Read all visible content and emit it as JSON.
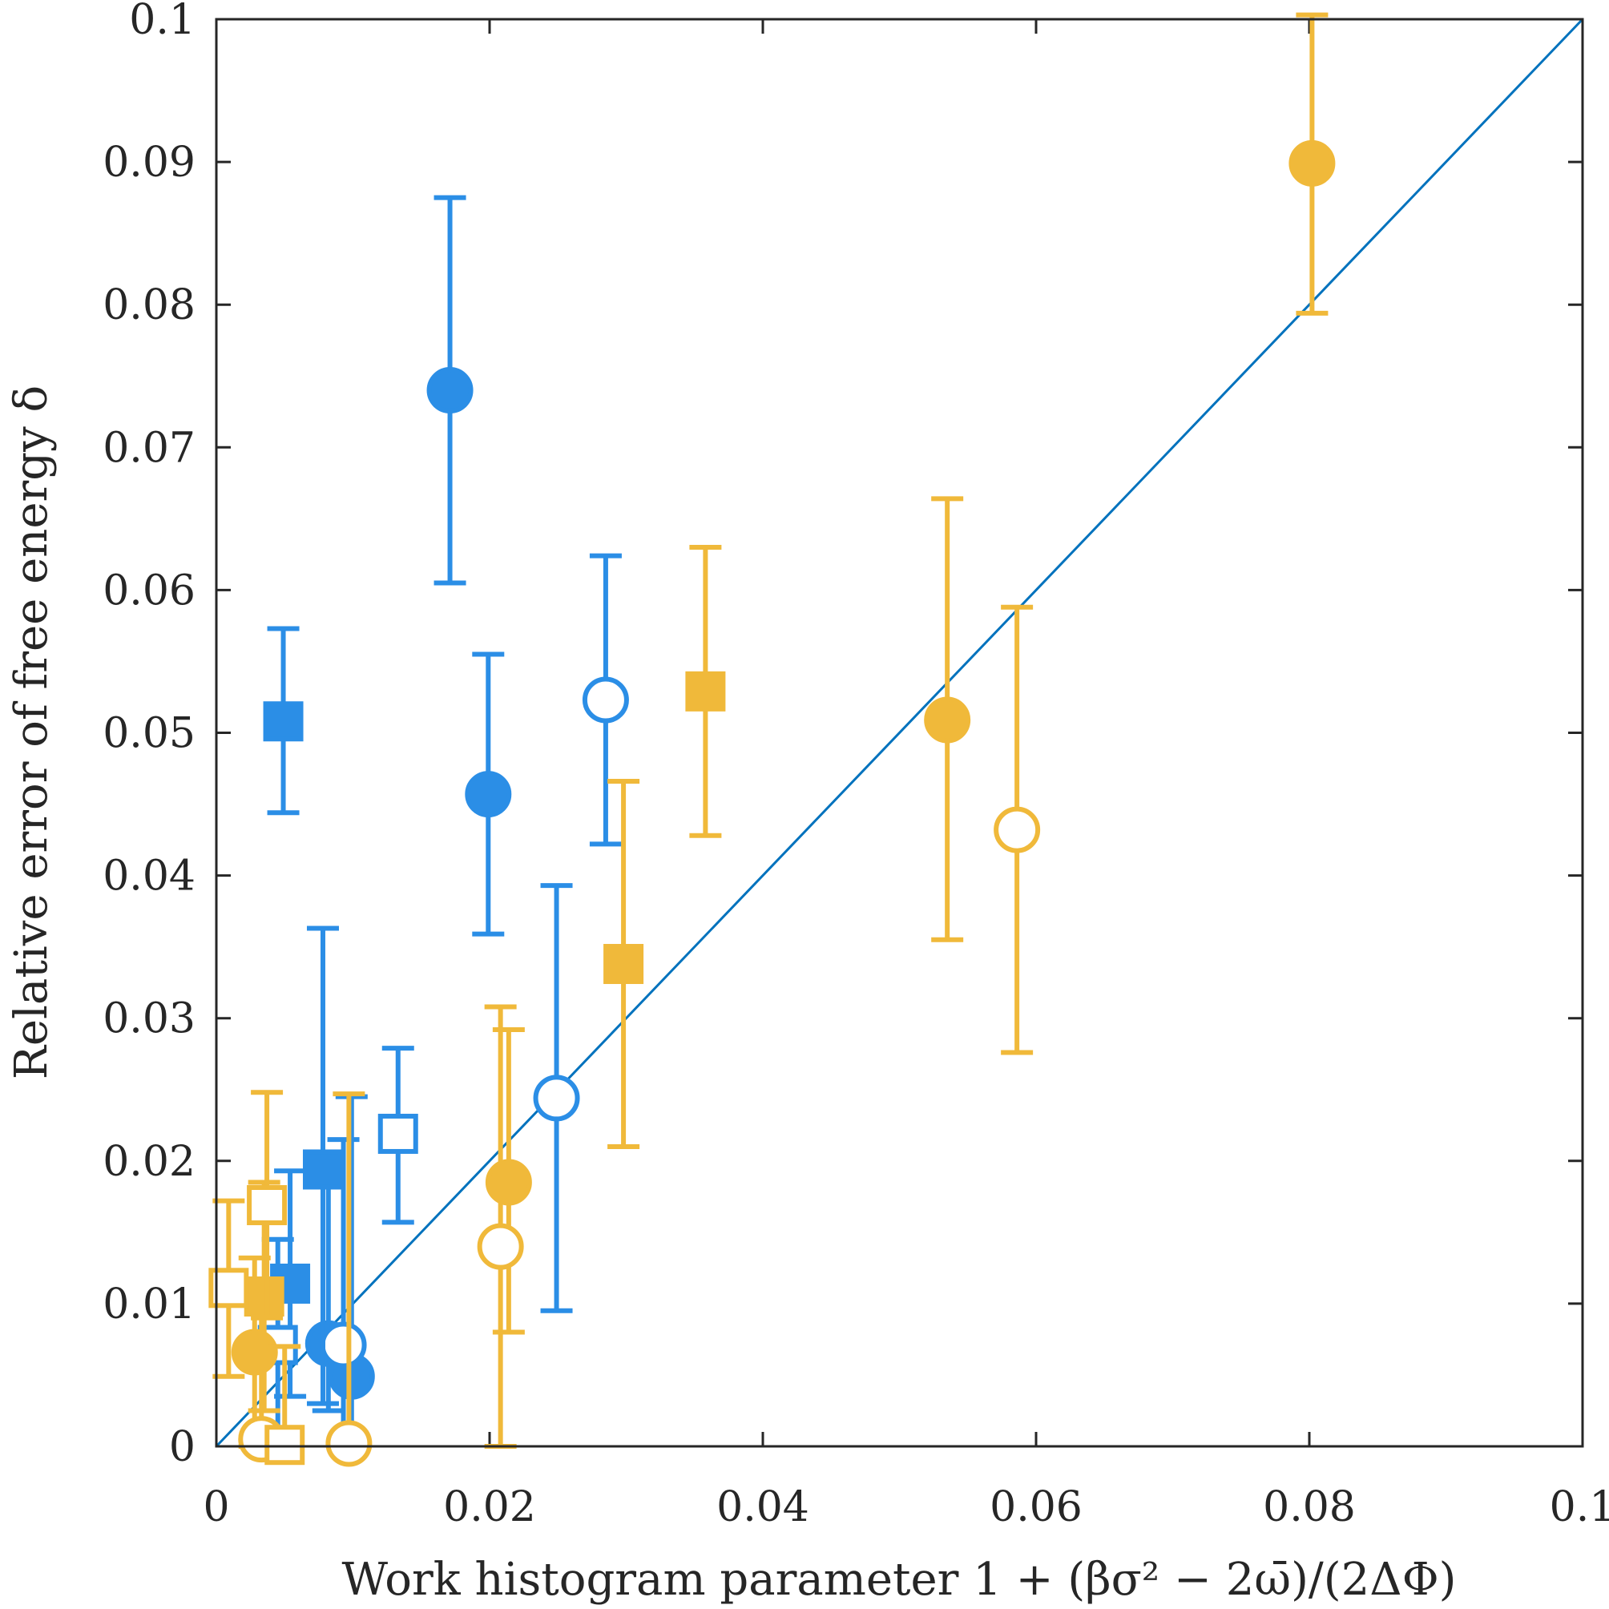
{
  "chart_data": {
    "type": "scatter",
    "title": "",
    "xlabel": "Work histogram parameter 1 + (βσ² − 2ω̄)/(2ΔΦ)",
    "ylabel": "Relative error of free energy δ",
    "xlim": [
      0,
      0.1
    ],
    "ylim": [
      0,
      0.1
    ],
    "xticks": [
      "0",
      "0.02",
      "0.04",
      "0.06",
      "0.08",
      "0.1"
    ],
    "yticks": [
      "0",
      "0.01",
      "0.02",
      "0.03",
      "0.04",
      "0.05",
      "0.06",
      "0.07",
      "0.08",
      "0.09",
      "0.1"
    ],
    "grid": false,
    "reference_line": {
      "x": [
        0,
        0.1
      ],
      "y": [
        0,
        0.1
      ],
      "color": "#0072bd"
    },
    "colors": {
      "blue": "#2b8ee6",
      "gold": "#f0b93a"
    },
    "series": [
      {
        "color": "blue",
        "marker": "filled-circle",
        "points": [
          {
            "x": 0.0171,
            "y": 0.074,
            "err_low": 0.0605,
            "err_high": 0.0875
          },
          {
            "x": 0.0199,
            "y": 0.0457,
            "err_low": 0.0359,
            "err_high": 0.0555
          },
          {
            "x": 0.0082,
            "y": 0.0072,
            "err_low": 0.0025,
            "err_high": 0.0195
          },
          {
            "x": 0.0099,
            "y": 0.0049,
            "err_low": 0.0005,
            "err_high": 0.0245
          }
        ]
      },
      {
        "color": "blue",
        "marker": "open-circle",
        "points": [
          {
            "x": 0.0285,
            "y": 0.0523,
            "err_low": 0.0422,
            "err_high": 0.0624
          },
          {
            "x": 0.0249,
            "y": 0.0244,
            "err_low": 0.0095,
            "err_high": 0.0393
          },
          {
            "x": 0.0093,
            "y": 0.0071,
            "err_low": 0.0,
            "err_high": 0.0215
          }
        ]
      },
      {
        "color": "blue",
        "marker": "filled-square",
        "points": [
          {
            "x": 0.0049,
            "y": 0.0508,
            "err_low": 0.0444,
            "err_high": 0.0573
          },
          {
            "x": 0.0078,
            "y": 0.0194,
            "err_low": 0.003,
            "err_high": 0.0363
          },
          {
            "x": 0.0054,
            "y": 0.0114,
            "err_low": 0.0035,
            "err_high": 0.0193
          }
        ]
      },
      {
        "color": "blue",
        "marker": "open-square",
        "points": [
          {
            "x": 0.0133,
            "y": 0.0219,
            "err_low": 0.0157,
            "err_high": 0.0279
          },
          {
            "x": 0.0045,
            "y": 0.0071,
            "err_low": 0.0,
            "err_high": 0.0145
          }
        ]
      },
      {
        "color": "gold",
        "marker": "filled-circle",
        "points": [
          {
            "x": 0.0802,
            "y": 0.0899,
            "err_low": 0.0794,
            "err_high": 0.1003
          },
          {
            "x": 0.0535,
            "y": 0.0509,
            "err_low": 0.0355,
            "err_high": 0.0664
          },
          {
            "x": 0.0214,
            "y": 0.0185,
            "err_low": 0.008,
            "err_high": 0.0292
          },
          {
            "x": 0.0028,
            "y": 0.0066,
            "err_low": 0.0,
            "err_high": 0.0132
          }
        ]
      },
      {
        "color": "gold",
        "marker": "open-circle",
        "points": [
          {
            "x": 0.0586,
            "y": 0.0432,
            "err_low": 0.0276,
            "err_high": 0.0588
          },
          {
            "x": 0.0208,
            "y": 0.014,
            "err_low": 0.0,
            "err_high": 0.0308
          },
          {
            "x": 0.0033,
            "y": 0.0005,
            "err_low": 0.0,
            "err_high": 0.0099
          },
          {
            "x": 0.0097,
            "y": 0.0002,
            "err_low": 0.0,
            "err_high": 0.0247
          }
        ]
      },
      {
        "color": "gold",
        "marker": "filled-square",
        "points": [
          {
            "x": 0.0358,
            "y": 0.0529,
            "err_low": 0.0428,
            "err_high": 0.063
          },
          {
            "x": 0.0298,
            "y": 0.0338,
            "err_low": 0.021,
            "err_high": 0.0466
          },
          {
            "x": 0.0035,
            "y": 0.0105,
            "err_low": 0.0025,
            "err_high": 0.0185
          }
        ]
      },
      {
        "color": "gold",
        "marker": "open-square",
        "points": [
          {
            "x": 0.0037,
            "y": 0.0169,
            "err_low": 0.009,
            "err_high": 0.0248
          },
          {
            "x": 0.0009,
            "y": 0.0111,
            "err_low": 0.0049,
            "err_high": 0.0172
          },
          {
            "x": 0.005,
            "y": 0.0001,
            "err_low": 0.0,
            "err_high": 0.007
          }
        ]
      }
    ]
  }
}
